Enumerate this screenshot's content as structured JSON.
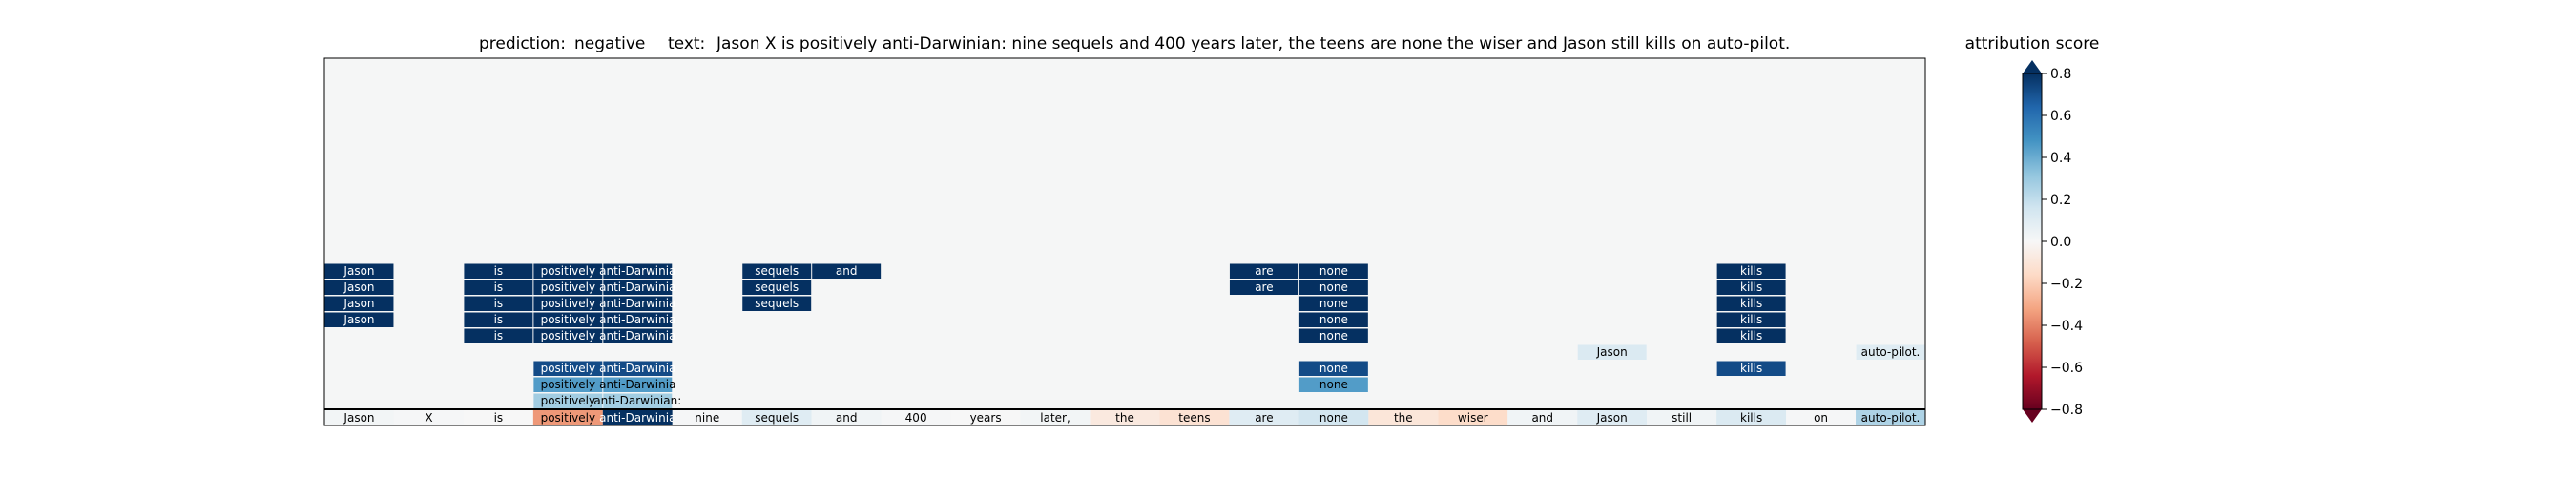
{
  "chart_data": {
    "type": "heatmap",
    "title": {
      "prediction_label": "prediction:",
      "prediction": "negative",
      "text_label": "text:",
      "text": "Jason X is positively anti-Darwinian: nine sequels and 400 years later, the teens are none the wiser and Jason still kills on auto-pilot."
    },
    "colorbar": {
      "label": "attribution score",
      "range": [
        -0.8,
        0.8
      ],
      "ticks": [
        "0.8",
        "0.6",
        "0.4",
        "0.2",
        "0.0",
        "−0.2",
        "−0.4",
        "−0.6",
        "−0.8"
      ],
      "tick_values": [
        0.8,
        0.6,
        0.4,
        0.2,
        0.0,
        -0.2,
        -0.4,
        -0.6,
        -0.8
      ],
      "colormap": "RdBu"
    },
    "tokens": [
      "Jason",
      "X",
      "is",
      "positively",
      "anti-Darwinian:",
      "nine",
      "sequels",
      "and",
      "400",
      "years",
      "later,",
      "the",
      "teens",
      "are",
      "none",
      "the",
      "wiser",
      "and",
      "Jason",
      "still",
      "kills",
      "on",
      "auto-pilot."
    ],
    "token_labels": [
      "Jason",
      "X",
      "is",
      "positively",
      "anti-Darwinia",
      "nine",
      "sequels",
      "and",
      "400",
      "years",
      "later,",
      "the",
      "teens",
      "are",
      "none",
      "the",
      "wiser",
      "and",
      "Jason",
      "still",
      "kills",
      "on",
      "auto-pilot."
    ],
    "token_scores": [
      0.02,
      0.01,
      0.0,
      -0.35,
      0.85,
      0.01,
      0.1,
      0.03,
      0.01,
      0.0,
      0.02,
      -0.08,
      -0.12,
      0.1,
      0.15,
      -0.1,
      -0.15,
      0.03,
      0.1,
      0.03,
      0.12,
      0.01,
      0.25
    ],
    "rows": [
      {
        "level": 9,
        "cells": [
          {
            "token": 0,
            "label": "Jason",
            "value": 0.85
          },
          {
            "token": 2,
            "label": "is",
            "value": 0.85
          },
          {
            "token": 3,
            "label": "positively",
            "value": 0.85
          },
          {
            "token": 4,
            "label": "anti-Darwinia",
            "value": 0.85
          },
          {
            "token": 6,
            "label": "sequels",
            "value": 0.85
          },
          {
            "token": 7,
            "label": "and",
            "value": 0.85
          },
          {
            "token": 13,
            "label": "are",
            "value": 0.85
          },
          {
            "token": 14,
            "label": "none",
            "value": 0.85
          },
          {
            "token": 20,
            "label": "kills",
            "value": 0.85
          }
        ]
      },
      {
        "level": 8,
        "cells": [
          {
            "token": 0,
            "label": "Jason",
            "value": 0.85
          },
          {
            "token": 2,
            "label": "is",
            "value": 0.85
          },
          {
            "token": 3,
            "label": "positively",
            "value": 0.85
          },
          {
            "token": 4,
            "label": "anti-Darwinia",
            "value": 0.85
          },
          {
            "token": 6,
            "label": "sequels",
            "value": 0.85
          },
          {
            "token": 13,
            "label": "are",
            "value": 0.85
          },
          {
            "token": 14,
            "label": "none",
            "value": 0.85
          },
          {
            "token": 20,
            "label": "kills",
            "value": 0.85
          }
        ]
      },
      {
        "level": 7,
        "cells": [
          {
            "token": 0,
            "label": "Jason",
            "value": 0.85
          },
          {
            "token": 2,
            "label": "is",
            "value": 0.85
          },
          {
            "token": 3,
            "label": "positively",
            "value": 0.85
          },
          {
            "token": 4,
            "label": "anti-Darwinia",
            "value": 0.85
          },
          {
            "token": 6,
            "label": "sequels",
            "value": 0.85
          },
          {
            "token": 14,
            "label": "none",
            "value": 0.85
          },
          {
            "token": 20,
            "label": "kills",
            "value": 0.85
          }
        ]
      },
      {
        "level": 6,
        "cells": [
          {
            "token": 0,
            "label": "Jason",
            "value": 0.85
          },
          {
            "token": 2,
            "label": "is",
            "value": 0.85
          },
          {
            "token": 3,
            "label": "positively",
            "value": 0.85
          },
          {
            "token": 4,
            "label": "anti-Darwinia",
            "value": 0.85
          },
          {
            "token": 14,
            "label": "none",
            "value": 0.85
          },
          {
            "token": 20,
            "label": "kills",
            "value": 0.85
          }
        ]
      },
      {
        "level": 5,
        "cells": [
          {
            "token": 2,
            "label": "is",
            "value": 0.8
          },
          {
            "token": 3,
            "label": "positively",
            "value": 0.8
          },
          {
            "token": 4,
            "label": "anti-Darwinia",
            "value": 0.8
          },
          {
            "token": 14,
            "label": "none",
            "value": 0.8
          },
          {
            "token": 20,
            "label": "kills",
            "value": 0.8
          }
        ]
      },
      {
        "level": 4,
        "cells": [
          {
            "token": 18,
            "label": "Jason",
            "value": 0.12
          },
          {
            "token": 22,
            "label": "auto-pilot.",
            "value": 0.1
          }
        ]
      },
      {
        "level": 3,
        "cells": [
          {
            "token": 3,
            "label": "positively",
            "value": 0.72
          },
          {
            "token": 4,
            "label": "anti-Darwinia",
            "value": 0.72
          },
          {
            "token": 14,
            "label": "none",
            "value": 0.72
          },
          {
            "token": 20,
            "label": "kills",
            "value": 0.72
          }
        ]
      },
      {
        "level": 2,
        "cells": [
          {
            "token": 3,
            "label": "positively",
            "value": 0.45
          },
          {
            "token": 4,
            "label": "anti-Darwinia",
            "value": 0.45
          },
          {
            "token": 14,
            "label": "none",
            "value": 0.45
          }
        ]
      },
      {
        "level": 1,
        "cells": [
          {
            "token": 3,
            "label": "positively",
            "value": 0.28
          },
          {
            "token": 4,
            "label": "anti-Darwinian:",
            "value": 0.28
          }
        ]
      }
    ],
    "grid": false,
    "legend": "colorbar-right"
  }
}
